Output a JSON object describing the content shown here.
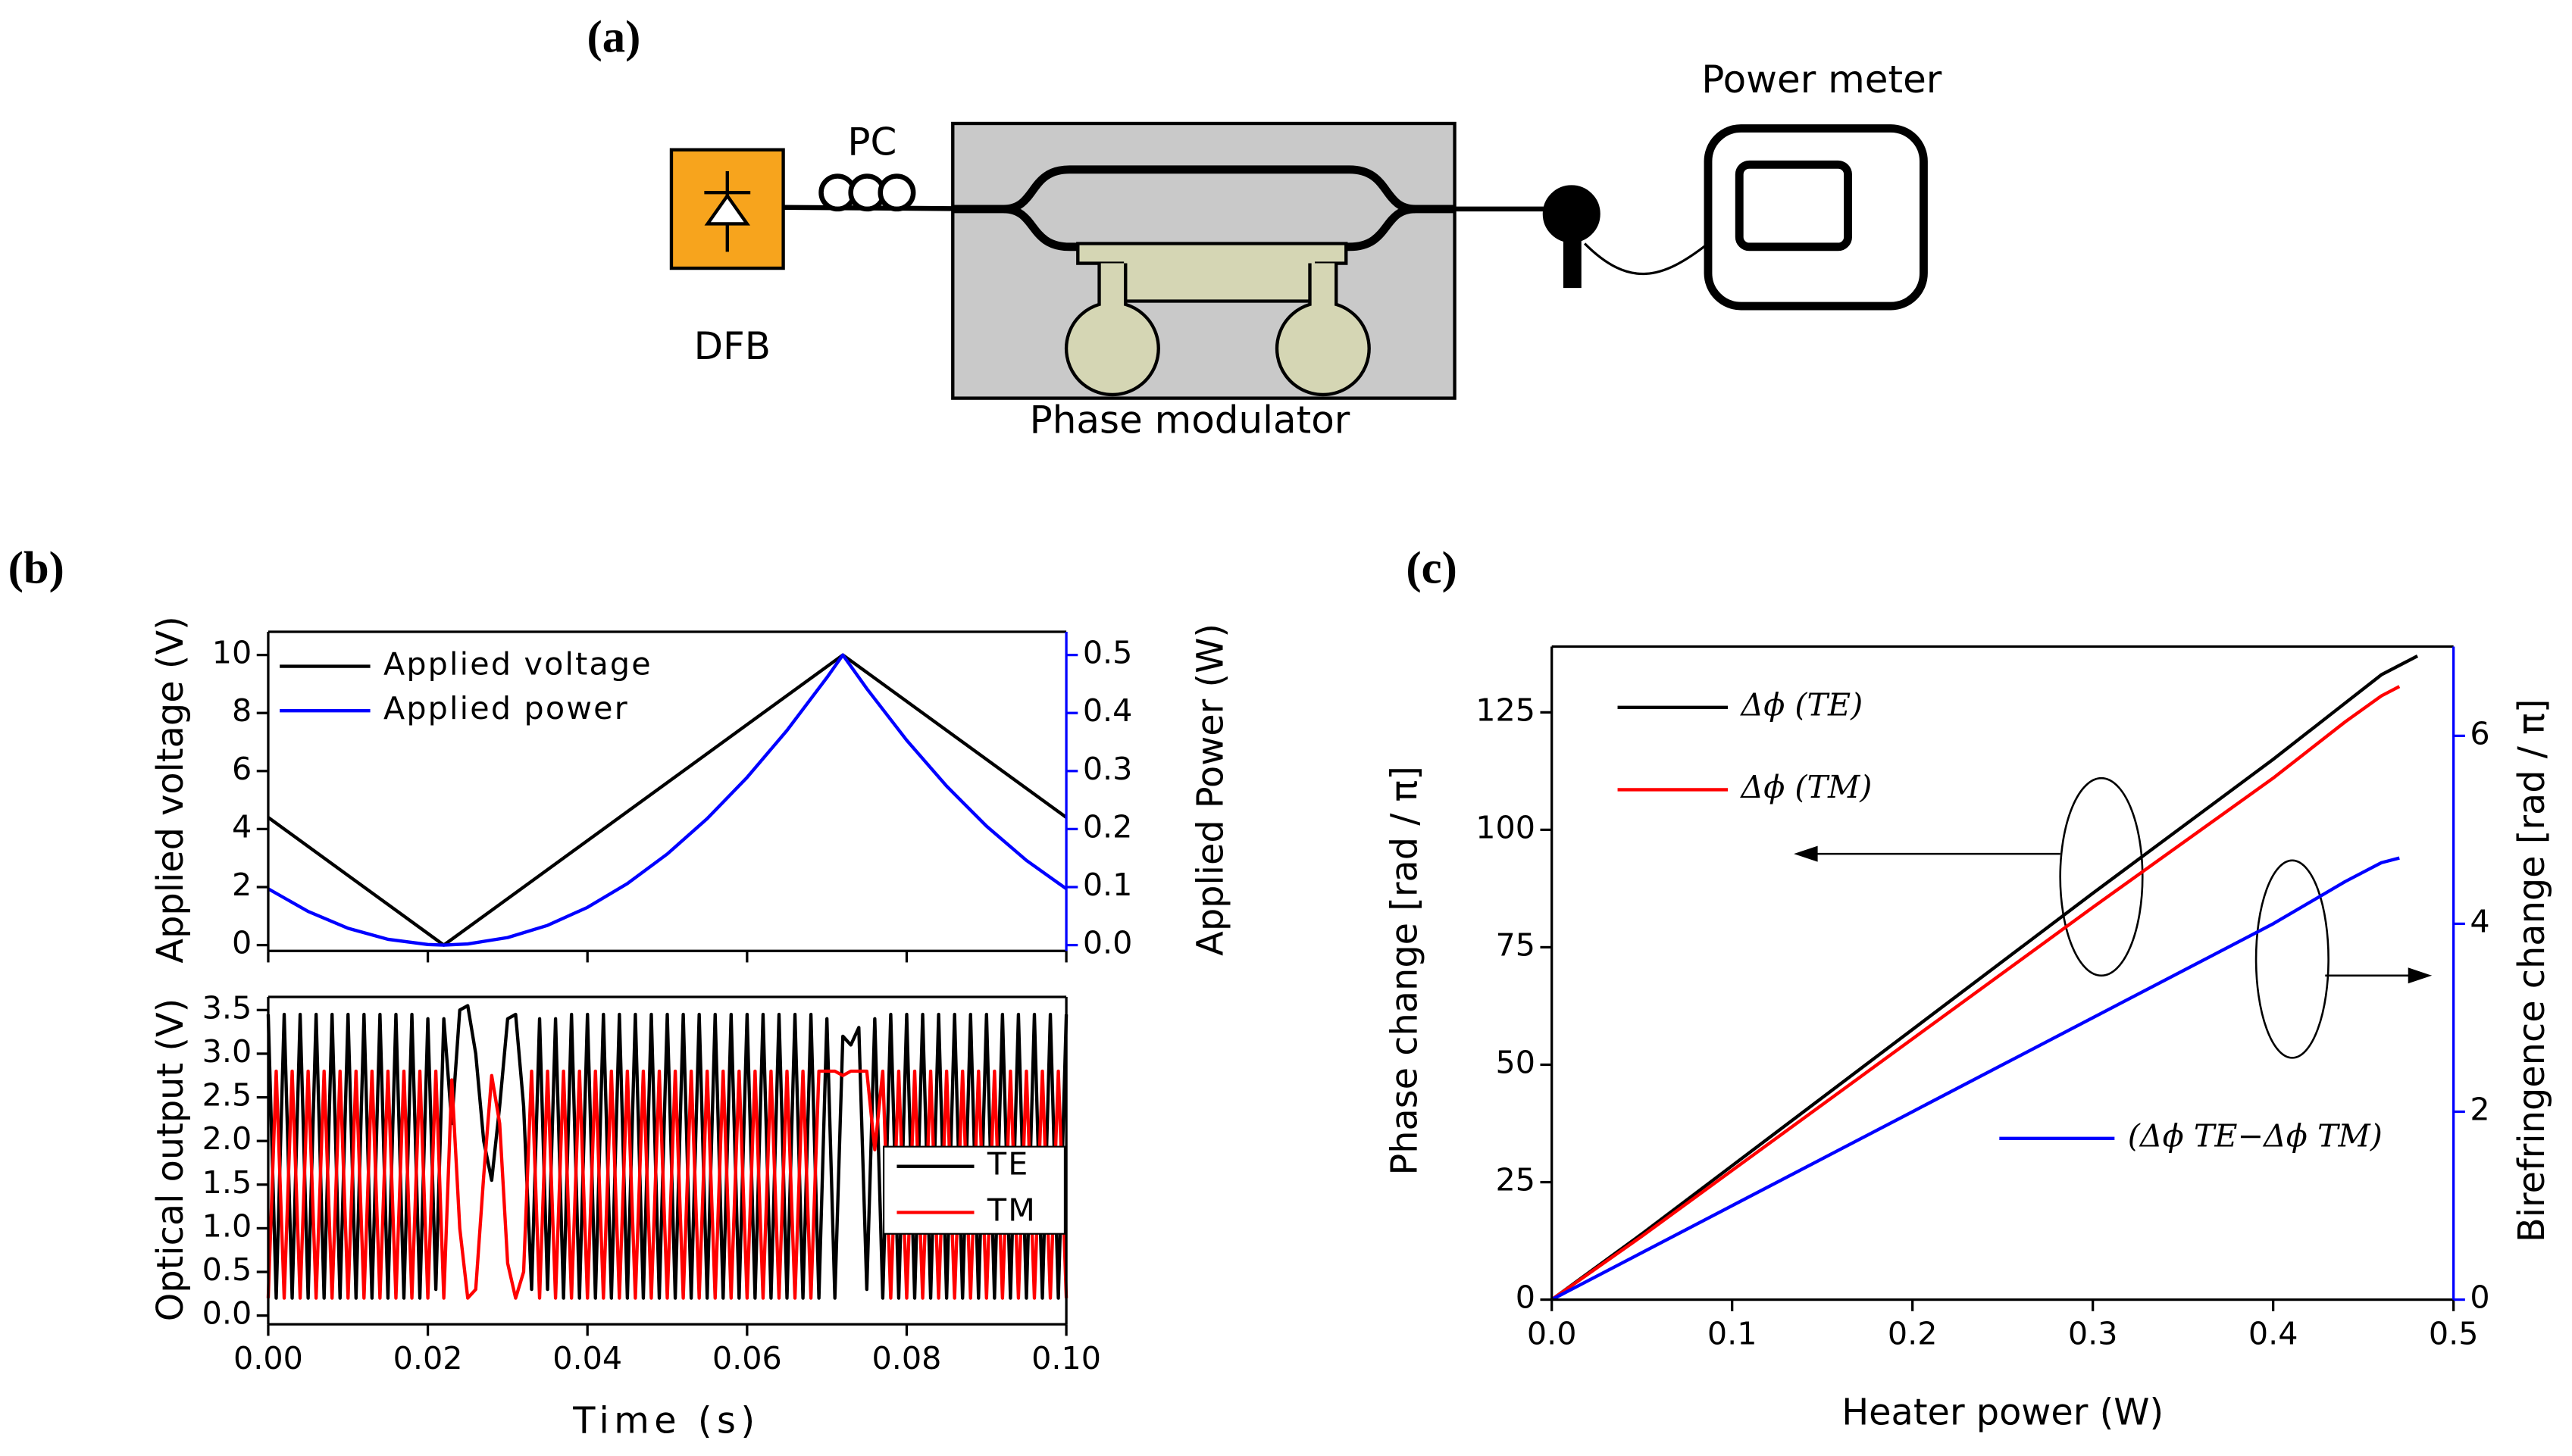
{
  "diagram": {
    "label": "(a)",
    "pc": "PC",
    "laser": "DFB",
    "modulator": "Phase modulator",
    "meter": "Power meter"
  },
  "chart_data": [
    {
      "type": "line",
      "panel_label": "(b)",
      "ylabel": "Applied voltage (V)",
      "y2label": "Applied Power (W)",
      "y2color": "#0000ff",
      "xlim": [
        0,
        0.1
      ],
      "xticks": [
        0,
        0.02,
        0.04,
        0.06,
        0.08,
        0.1
      ],
      "ylim": [
        -0.2,
        10.8
      ],
      "yticks": [
        0,
        2,
        4,
        6,
        8,
        10
      ],
      "y2lim": [
        -0.01,
        0.54
      ],
      "y2ticks": [
        {
          "value": 0,
          "label": "0.0"
        },
        0.1,
        0.2,
        0.3,
        0.4,
        0.5
      ],
      "series": [
        {
          "name": "Applied voltage",
          "color": "#000000",
          "x": [
            0,
            0.022,
            0.072,
            0.1
          ],
          "values": [
            4.4,
            0,
            10,
            4.4
          ]
        },
        {
          "name": "Applied power",
          "color": "#0000ff",
          "axis": "y2",
          "x": [
            0,
            0.005,
            0.01,
            0.015,
            0.02,
            0.022,
            0.025,
            0.03,
            0.035,
            0.04,
            0.045,
            0.05,
            0.055,
            0.06,
            0.065,
            0.07,
            0.072,
            0.075,
            0.08,
            0.085,
            0.09,
            0.095,
            0.1
          ],
          "values": [
            0.097,
            0.058,
            0.029,
            0.01,
            0.001,
            0,
            0.002,
            0.013,
            0.034,
            0.065,
            0.106,
            0.157,
            0.218,
            0.289,
            0.37,
            0.461,
            0.5,
            0.442,
            0.353,
            0.274,
            0.205,
            0.146,
            0.097
          ]
        }
      ]
    },
    {
      "type": "line",
      "ylabel": "Optical output (V)",
      "xlabel": "Time (s)",
      "xlim": [
        0,
        0.1
      ],
      "xticks": [
        {
          "value": 0,
          "label": "0.00"
        },
        {
          "value": 0.02,
          "label": "0.02"
        },
        {
          "value": 0.04,
          "label": "0.04"
        },
        {
          "value": 0.06,
          "label": "0.06"
        },
        {
          "value": 0.08,
          "label": "0.08"
        },
        {
          "value": 0.1,
          "label": "0.10"
        }
      ],
      "ylim": [
        -0.1,
        3.65
      ],
      "yticks": [
        {
          "value": 0,
          "label": "0.0"
        },
        0.5,
        {
          "value": 1,
          "label": "1.0"
        },
        1.5,
        {
          "value": 2,
          "label": "2.0"
        },
        2.5,
        {
          "value": 3,
          "label": "3.0"
        },
        3.5
      ],
      "x": [
        0,
        0.001,
        0.002,
        0.003,
        0.004,
        0.005,
        0.006,
        0.007,
        0.008,
        0.009,
        0.01,
        0.011,
        0.012,
        0.013,
        0.014,
        0.015,
        0.016,
        0.017,
        0.018,
        0.019,
        0.02,
        0.021,
        0.022,
        0.023,
        0.024,
        0.025,
        0.026,
        0.027,
        0.028,
        0.029,
        0.03,
        0.031,
        0.032,
        0.033,
        0.034,
        0.035,
        0.036,
        0.037,
        0.038,
        0.039,
        0.04,
        0.041,
        0.042,
        0.043,
        0.044,
        0.045,
        0.046,
        0.047,
        0.048,
        0.049,
        0.05,
        0.051,
        0.052,
        0.053,
        0.054,
        0.055,
        0.056,
        0.057,
        0.058,
        0.059,
        0.06,
        0.061,
        0.062,
        0.063,
        0.064,
        0.065,
        0.066,
        0.067,
        0.068,
        0.069,
        0.07,
        0.071,
        0.072,
        0.073,
        0.074,
        0.075,
        0.076,
        0.077,
        0.078,
        0.079,
        0.08,
        0.081,
        0.082,
        0.083,
        0.084,
        0.085,
        0.086,
        0.087,
        0.088,
        0.089,
        0.09,
        0.091,
        0.092,
        0.093,
        0.094,
        0.095,
        0.096,
        0.097,
        0.098,
        0.099,
        0.1
      ],
      "series": [
        {
          "name": "TE",
          "color": "#000000",
          "values": [
            3.45,
            0.2,
            3.45,
            0.2,
            3.45,
            0.2,
            3.45,
            0.2,
            3.45,
            0.2,
            3.45,
            0.2,
            3.45,
            0.2,
            3.45,
            0.2,
            3.45,
            0.2,
            3.45,
            0.2,
            3.4,
            0.3,
            3.4,
            2.2,
            3.5,
            3.55,
            3.0,
            2.0,
            1.55,
            2.4,
            3.4,
            3.45,
            2.4,
            0.3,
            3.4,
            0.3,
            3.4,
            0.2,
            3.45,
            0.2,
            3.45,
            0.2,
            3.45,
            0.2,
            3.45,
            0.2,
            3.45,
            0.2,
            3.45,
            0.2,
            3.45,
            0.2,
            3.45,
            0.2,
            3.45,
            0.2,
            3.45,
            0.2,
            3.45,
            0.2,
            3.45,
            0.2,
            3.45,
            0.2,
            3.45,
            0.2,
            3.45,
            0.2,
            3.45,
            0.2,
            3.4,
            0.2,
            3.2,
            3.1,
            3.3,
            0.3,
            3.4,
            0.2,
            3.45,
            0.2,
            3.45,
            0.2,
            3.45,
            0.2,
            3.45,
            0.2,
            3.45,
            0.2,
            3.45,
            0.2,
            3.45,
            0.2,
            3.45,
            0.2,
            3.45,
            0.2,
            3.45,
            0.2,
            3.45,
            0.2,
            3.45
          ]
        },
        {
          "name": "TM",
          "color": "#ff0000",
          "values": [
            0.2,
            2.8,
            0.2,
            2.8,
            0.2,
            2.8,
            0.2,
            2.8,
            0.2,
            2.8,
            0.2,
            2.8,
            0.2,
            2.8,
            0.2,
            2.8,
            0.2,
            2.8,
            0.2,
            2.8,
            0.2,
            2.8,
            0.2,
            2.7,
            1.0,
            0.2,
            0.3,
            1.6,
            2.75,
            2.2,
            0.6,
            0.2,
            0.5,
            2.8,
            0.2,
            2.8,
            0.2,
            2.8,
            0.2,
            2.8,
            0.2,
            2.8,
            0.2,
            2.8,
            0.2,
            2.8,
            0.2,
            2.8,
            0.2,
            2.8,
            0.2,
            2.8,
            0.2,
            2.8,
            0.2,
            2.8,
            0.2,
            2.8,
            0.2,
            2.8,
            0.2,
            2.8,
            0.2,
            2.8,
            0.2,
            2.8,
            0.2,
            2.8,
            0.2,
            2.8,
            2.8,
            2.8,
            2.75,
            2.8,
            2.8,
            2.8,
            1.9,
            2.8,
            0.2,
            2.8,
            0.2,
            2.8,
            0.2,
            2.8,
            0.2,
            2.8,
            0.2,
            2.8,
            0.2,
            2.8,
            0.2,
            2.8,
            0.2,
            2.8,
            0.2,
            2.8,
            0.2,
            2.8,
            0.2,
            2.8,
            0.2
          ]
        }
      ]
    },
    {
      "type": "line",
      "panel_label": "(c)",
      "ylabel": "Phase change [rad / π]",
      "y2label": "Birefringence change [rad / π]",
      "xlabel": "Heater power (W)",
      "y2color": "#0000ff",
      "xlim": [
        0,
        0.5
      ],
      "xticks": [
        {
          "value": 0,
          "label": "0.0"
        },
        0.1,
        0.2,
        0.3,
        0.4,
        0.5
      ],
      "ylim": [
        0,
        139
      ],
      "yticks": [
        0,
        25,
        50,
        75,
        100,
        125
      ],
      "y2lim": [
        0,
        6.95
      ],
      "y2ticks": [
        0,
        2,
        4,
        6
      ],
      "series": [
        {
          "name": "Δϕ (TE)",
          "color": "#000000",
          "x": [
            0,
            0.05,
            0.1,
            0.2,
            0.3,
            0.4,
            0.44,
            0.46,
            0.48
          ],
          "values": [
            0,
            14,
            28.5,
            57.5,
            86.5,
            115,
            127,
            133,
            137
          ]
        },
        {
          "name": "Δϕ (TM)",
          "color": "#ff0000",
          "x": [
            0,
            0.05,
            0.1,
            0.2,
            0.3,
            0.4,
            0.44,
            0.46,
            0.47
          ],
          "values": [
            0,
            13.5,
            27.5,
            55.5,
            83.5,
            111,
            123,
            128.5,
            130.5
          ]
        },
        {
          "name": "(Δϕ TE−Δϕ TM)",
          "color": "#0000ff",
          "axis": "y2",
          "x": [
            0,
            0.05,
            0.1,
            0.15,
            0.2,
            0.25,
            0.3,
            0.35,
            0.4,
            0.44,
            0.46,
            0.47
          ],
          "values": [
            0,
            0.5,
            1.0,
            1.5,
            2.0,
            2.5,
            3.0,
            3.5,
            4.0,
            4.45,
            4.65,
            4.7
          ]
        }
      ]
    }
  ]
}
